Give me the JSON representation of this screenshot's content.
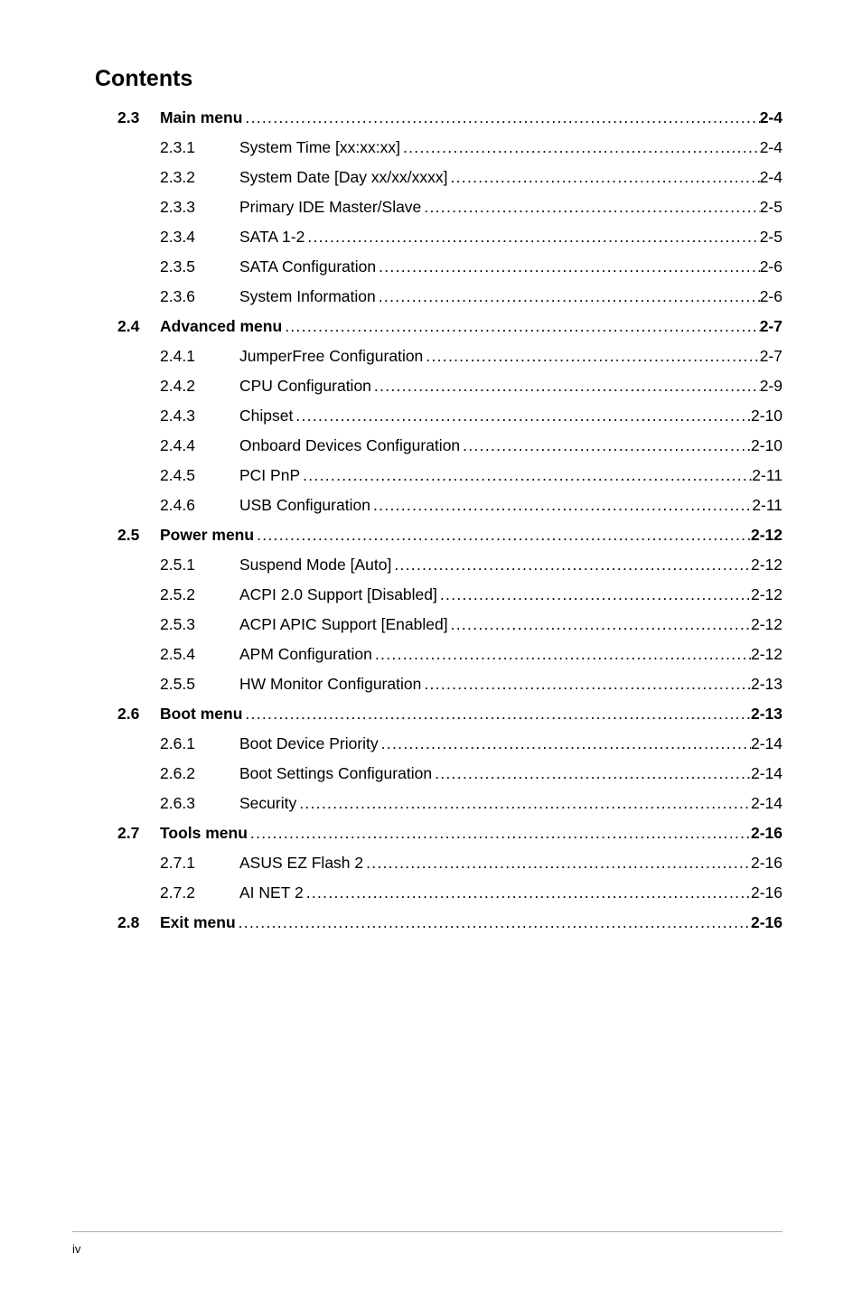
{
  "heading": "Contents",
  "footer_page": "iv",
  "dots_fill": "..............................................................................................................................................",
  "toc": [
    {
      "type": "main",
      "num": "2.3",
      "title": "Main menu",
      "page": "2-4"
    },
    {
      "type": "sub",
      "num": "2.3.1",
      "title": "System Time [xx:xx:xx]",
      "page": "2-4"
    },
    {
      "type": "sub",
      "num": "2.3.2",
      "title": "System Date [Day xx/xx/xxxx]",
      "page": "2-4"
    },
    {
      "type": "sub",
      "num": "2.3.3",
      "title": "Primary IDE Master/Slave",
      "page": "2-5"
    },
    {
      "type": "sub",
      "num": "2.3.4",
      "title": "SATA 1-2",
      "page": "2-5"
    },
    {
      "type": "sub",
      "num": "2.3.5",
      "title": "SATA Configuration",
      "page": "2-6"
    },
    {
      "type": "sub",
      "num": "2.3.6",
      "title": "System Information",
      "page": "2-6"
    },
    {
      "type": "main",
      "num": "2.4",
      "title": "Advanced menu",
      "page": "2-7"
    },
    {
      "type": "sub",
      "num": "2.4.1",
      "title": "JumperFree Configuration",
      "page": "2-7"
    },
    {
      "type": "sub",
      "num": "2.4.2",
      "title": "CPU Configuration",
      "page": "2-9"
    },
    {
      "type": "sub",
      "num": "2.4.3",
      "title": "Chipset",
      "page": "2-10"
    },
    {
      "type": "sub",
      "num": "2.4.4",
      "title": "Onboard Devices Configuration",
      "page": "2-10"
    },
    {
      "type": "sub",
      "num": "2.4.5",
      "title": "PCI PnP",
      "page": "2-11"
    },
    {
      "type": "sub",
      "num": "2.4.6",
      "title": "USB Configuration",
      "page": "2-11"
    },
    {
      "type": "main",
      "num": "2.5",
      "title": "Power menu",
      "page": "2-12"
    },
    {
      "type": "sub",
      "num": "2.5.1",
      "title": "Suspend Mode [Auto]",
      "page": "2-12"
    },
    {
      "type": "sub",
      "num": "2.5.2",
      "title": "ACPI 2.0 Support [Disabled]",
      "page": "2-12"
    },
    {
      "type": "sub",
      "num": "2.5.3",
      "title": "ACPI APIC Support [Enabled]",
      "page": "2-12"
    },
    {
      "type": "sub",
      "num": "2.5.4",
      "title": "APM Configuration",
      "page": "2-12"
    },
    {
      "type": "sub",
      "num": "2.5.5",
      "title": "HW Monitor Configuration",
      "page": "2-13"
    },
    {
      "type": "main",
      "num": "2.6",
      "title": "Boot menu",
      "page": "2-13"
    },
    {
      "type": "sub",
      "num": "2.6.1",
      "title": "Boot Device Priority",
      "page": "2-14"
    },
    {
      "type": "sub",
      "num": "2.6.2",
      "title": "Boot Settings Configuration",
      "page": "2-14"
    },
    {
      "type": "sub",
      "num": "2.6.3",
      "title": "Security",
      "page": "2-14"
    },
    {
      "type": "main",
      "num": "2.7",
      "title": "Tools menu",
      "page": "2-16"
    },
    {
      "type": "sub",
      "num": "2.7.1",
      "title": "ASUS EZ Flash 2",
      "page": "2-16"
    },
    {
      "type": "sub",
      "num": "2.7.2",
      "title": "AI NET 2",
      "page": "2-16"
    },
    {
      "type": "main",
      "num": "2.8",
      "title": "Exit menu",
      "page": "2-16"
    }
  ]
}
